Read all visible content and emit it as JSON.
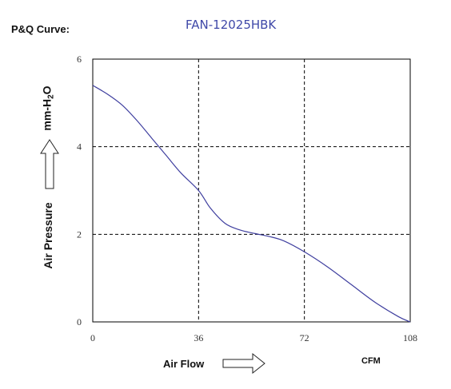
{
  "header": {
    "pq_label": "P&Q Curve:",
    "model": "FAN-12025HBK"
  },
  "axes": {
    "ylabel_main": "Air Pressure",
    "ylabel_unit_prefix": "mm-H",
    "ylabel_unit_sub": "2",
    "ylabel_unit_suffix": "O",
    "xlabel": "Air Flow",
    "xunit": "CFM"
  },
  "colors": {
    "curve": "#3f3f9f",
    "title": "#3f48a8",
    "axis": "#000000"
  },
  "chart_data": {
    "type": "line",
    "title": "FAN-12025HBK",
    "xlabel": "Air Flow",
    "ylabel": "Air Pressure mm-H2O",
    "xunit": "CFM",
    "xlim": [
      0,
      108
    ],
    "ylim": [
      0,
      6
    ],
    "xticks": [
      "0",
      "36",
      "72",
      "108"
    ],
    "yticks": [
      "0",
      "2",
      "4",
      "6"
    ],
    "grid": "dashed at x=36,72 and y=2,4",
    "series": [
      {
        "x": [
          0,
          5,
          10,
          15,
          20,
          25,
          30,
          36,
          40,
          45,
          50,
          55,
          60,
          65,
          72,
          80,
          88,
          96,
          104,
          108
        ],
        "y": [
          5.4,
          5.2,
          4.95,
          4.6,
          4.2,
          3.8,
          3.4,
          3.0,
          2.6,
          2.25,
          2.1,
          2.02,
          1.95,
          1.85,
          1.6,
          1.25,
          0.85,
          0.45,
          0.12,
          0
        ]
      }
    ]
  }
}
